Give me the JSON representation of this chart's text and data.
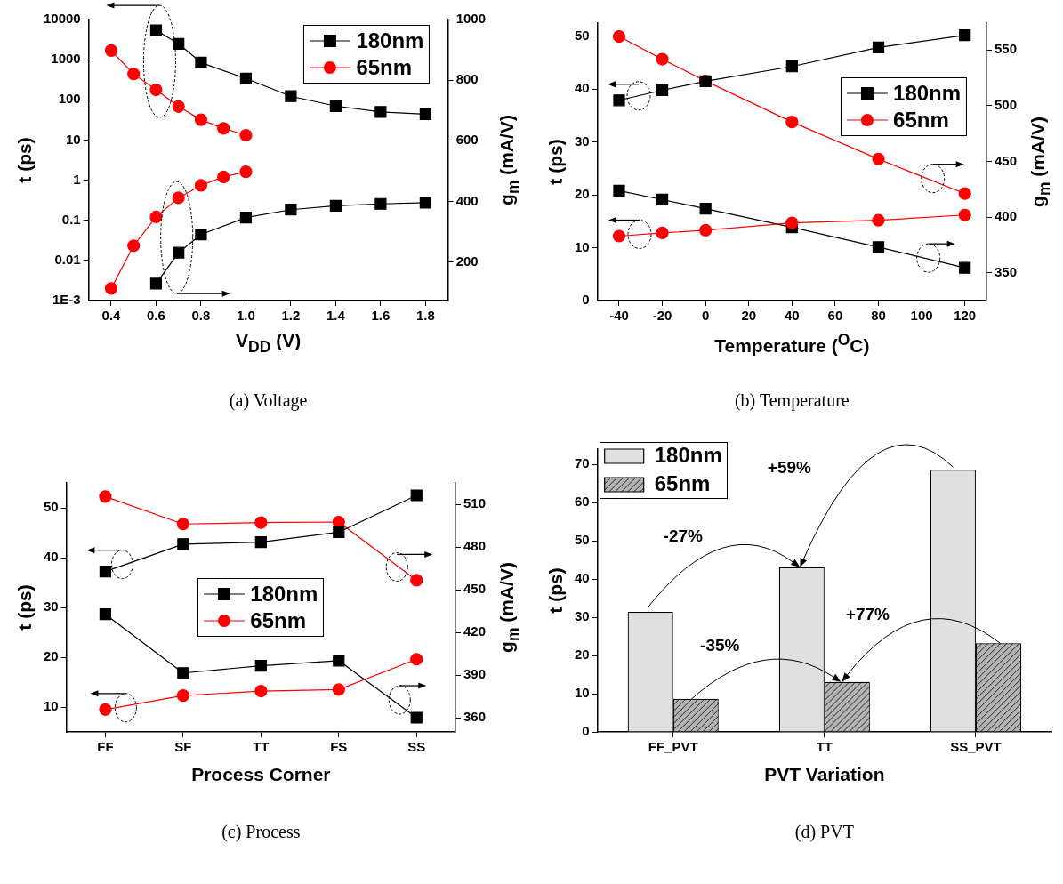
{
  "chart_data": [
    {
      "type": "line",
      "title": "(a) Voltage",
      "xlabel": "V$_{DD}$ (V)",
      "ylabel": "t (ps)",
      "y2label": "g$_{m}$ (mA/V)",
      "log": "y",
      "xlim": [
        0.3,
        1.9
      ],
      "xticks": [
        0.4,
        0.6,
        0.8,
        {
          "value": 1,
          "label": "1.0"
        },
        1.2,
        1.4,
        1.6,
        1.8
      ],
      "ylim": [
        0.001,
        10000
      ],
      "yticks": [
        {
          "value": 0.001,
          "label": "1E-3"
        },
        0.01,
        0.1,
        1,
        10,
        100,
        1000,
        10000
      ],
      "y2lim": [
        73,
        1000
      ],
      "y2ticks": [
        200,
        400,
        600,
        800,
        1000
      ],
      "legend": "top right",
      "series": [
        {
          "name": "180nm",
          "color": "#000000",
          "marker": "square",
          "x": [
            0.6,
            0.7,
            0.8,
            1.0,
            1.2,
            1.4,
            1.6,
            1.8
          ],
          "values": [
            5400,
            2480,
            850,
            340,
            123,
            70,
            50,
            44
          ]
        },
        {
          "name": "65nm",
          "color": "#ff0000",
          "marker": "circle",
          "x": [
            0.4,
            0.5,
            0.6,
            0.7,
            0.8,
            0.9,
            1.0
          ],
          "values": [
            1690,
            440,
            177,
            68,
            32,
            19.5,
            13.2
          ]
        },
        {
          "color": "#000000",
          "marker": "square",
          "axis": "y2",
          "x": [
            0.6,
            0.7,
            0.8,
            1.0,
            1.2,
            1.4,
            1.6,
            1.8
          ],
          "values": [
            129,
            231,
            291,
            347,
            373,
            386,
            392,
            396
          ]
        },
        {
          "color": "#ff0000",
          "marker": "circle",
          "axis": "y2",
          "x": [
            0.4,
            0.5,
            0.6,
            0.7,
            0.8,
            0.9,
            1.0
          ],
          "values": [
            113,
            254,
            349,
            412,
            453,
            481,
            498
          ]
        }
      ]
    },
    {
      "type": "line",
      "title": "(b) Temperature",
      "xlabel": "Temperature ($^{O}$C)",
      "ylabel": "t (ps)",
      "y2label": "g$_{m}$ (mA/V)",
      "x": [
        -40,
        -20,
        0,
        40,
        80,
        120
      ],
      "xlim": [
        -50,
        130
      ],
      "xticks": [
        -40,
        -20,
        0,
        20,
        40,
        60,
        80,
        100,
        120
      ],
      "ylim": [
        0,
        52.5
      ],
      "yticks": [
        0,
        10,
        20,
        30,
        40,
        50
      ],
      "y2lim": [
        325,
        574
      ],
      "y2ticks": [
        350,
        400,
        450,
        500,
        550
      ],
      "legend": "right",
      "series": [
        {
          "name": "180nm",
          "color": "#000000",
          "marker": "square",
          "values": [
            37.9,
            39.8,
            41.5,
            44.3,
            47.9,
            50.2
          ]
        },
        {
          "name": "65nm",
          "color": "#ff0000",
          "marker": "circle",
          "values": [
            12.2,
            12.8,
            13.3,
            14.7,
            15.2,
            16.2
          ]
        },
        {
          "color": "#000000",
          "marker": "square",
          "axis": "y2",
          "values": [
            423.7,
            415.6,
            407.5,
            390.7,
            373,
            354.4
          ]
        },
        {
          "color": "#ff0000",
          "marker": "circle",
          "axis": "y2",
          "values": [
            562,
            541.6,
            522,
            485.3,
            452,
            421
          ]
        }
      ]
    },
    {
      "type": "line",
      "title": "(c) Process",
      "xlabel": "Process Corner",
      "ylabel": "t (ps)",
      "y2label": "g$_{m}$ (mA/V)",
      "categories": [
        "FF",
        "SF",
        "TT",
        "FS",
        "SS"
      ],
      "ylim": [
        5,
        55
      ],
      "yticks": [
        10,
        20,
        30,
        40,
        50
      ],
      "y2lim": [
        350,
        525
      ],
      "y2ticks": [
        360,
        390,
        420,
        450,
        480,
        510
      ],
      "legend": "center",
      "series": [
        {
          "name": "180nm",
          "color": "#000000",
          "marker": "square",
          "values": [
            37.2,
            42.7,
            43.1,
            45.1,
            52.5
          ]
        },
        {
          "name": "65nm",
          "color": "#ff0000",
          "marker": "circle",
          "values": [
            9.5,
            12.3,
            13.2,
            13.5,
            19.6
          ]
        },
        {
          "color": "#000000",
          "marker": "square",
          "axis": "y2",
          "values": [
            432.7,
            391.4,
            396.5,
            400.1,
            360
          ]
        },
        {
          "color": "#ff0000",
          "marker": "circle",
          "axis": "y2",
          "values": [
            515.4,
            496.1,
            497.1,
            497.5,
            456.6
          ]
        }
      ]
    },
    {
      "type": "bar",
      "title": "(d) PVT",
      "xlabel": "PVT Variation",
      "ylabel": "t (ps)",
      "categories": [
        "FF_PVT",
        "TT",
        "SS_PVT"
      ],
      "ylim": [
        0,
        74
      ],
      "yticks": [
        0,
        10,
        20,
        30,
        40,
        50,
        60,
        70
      ],
      "legend": "top left",
      "annotations": [
        "+59%",
        "-27%",
        "+77%",
        "-35%"
      ],
      "series": [
        {
          "name": "180nm",
          "color": "#e0e0e0",
          "values": [
            31.4,
            43.1,
            68.6
          ]
        },
        {
          "name": "65nm",
          "color": "#b3b3b3",
          "values": [
            8.6,
            13.1,
            23.2
          ]
        }
      ]
    }
  ]
}
